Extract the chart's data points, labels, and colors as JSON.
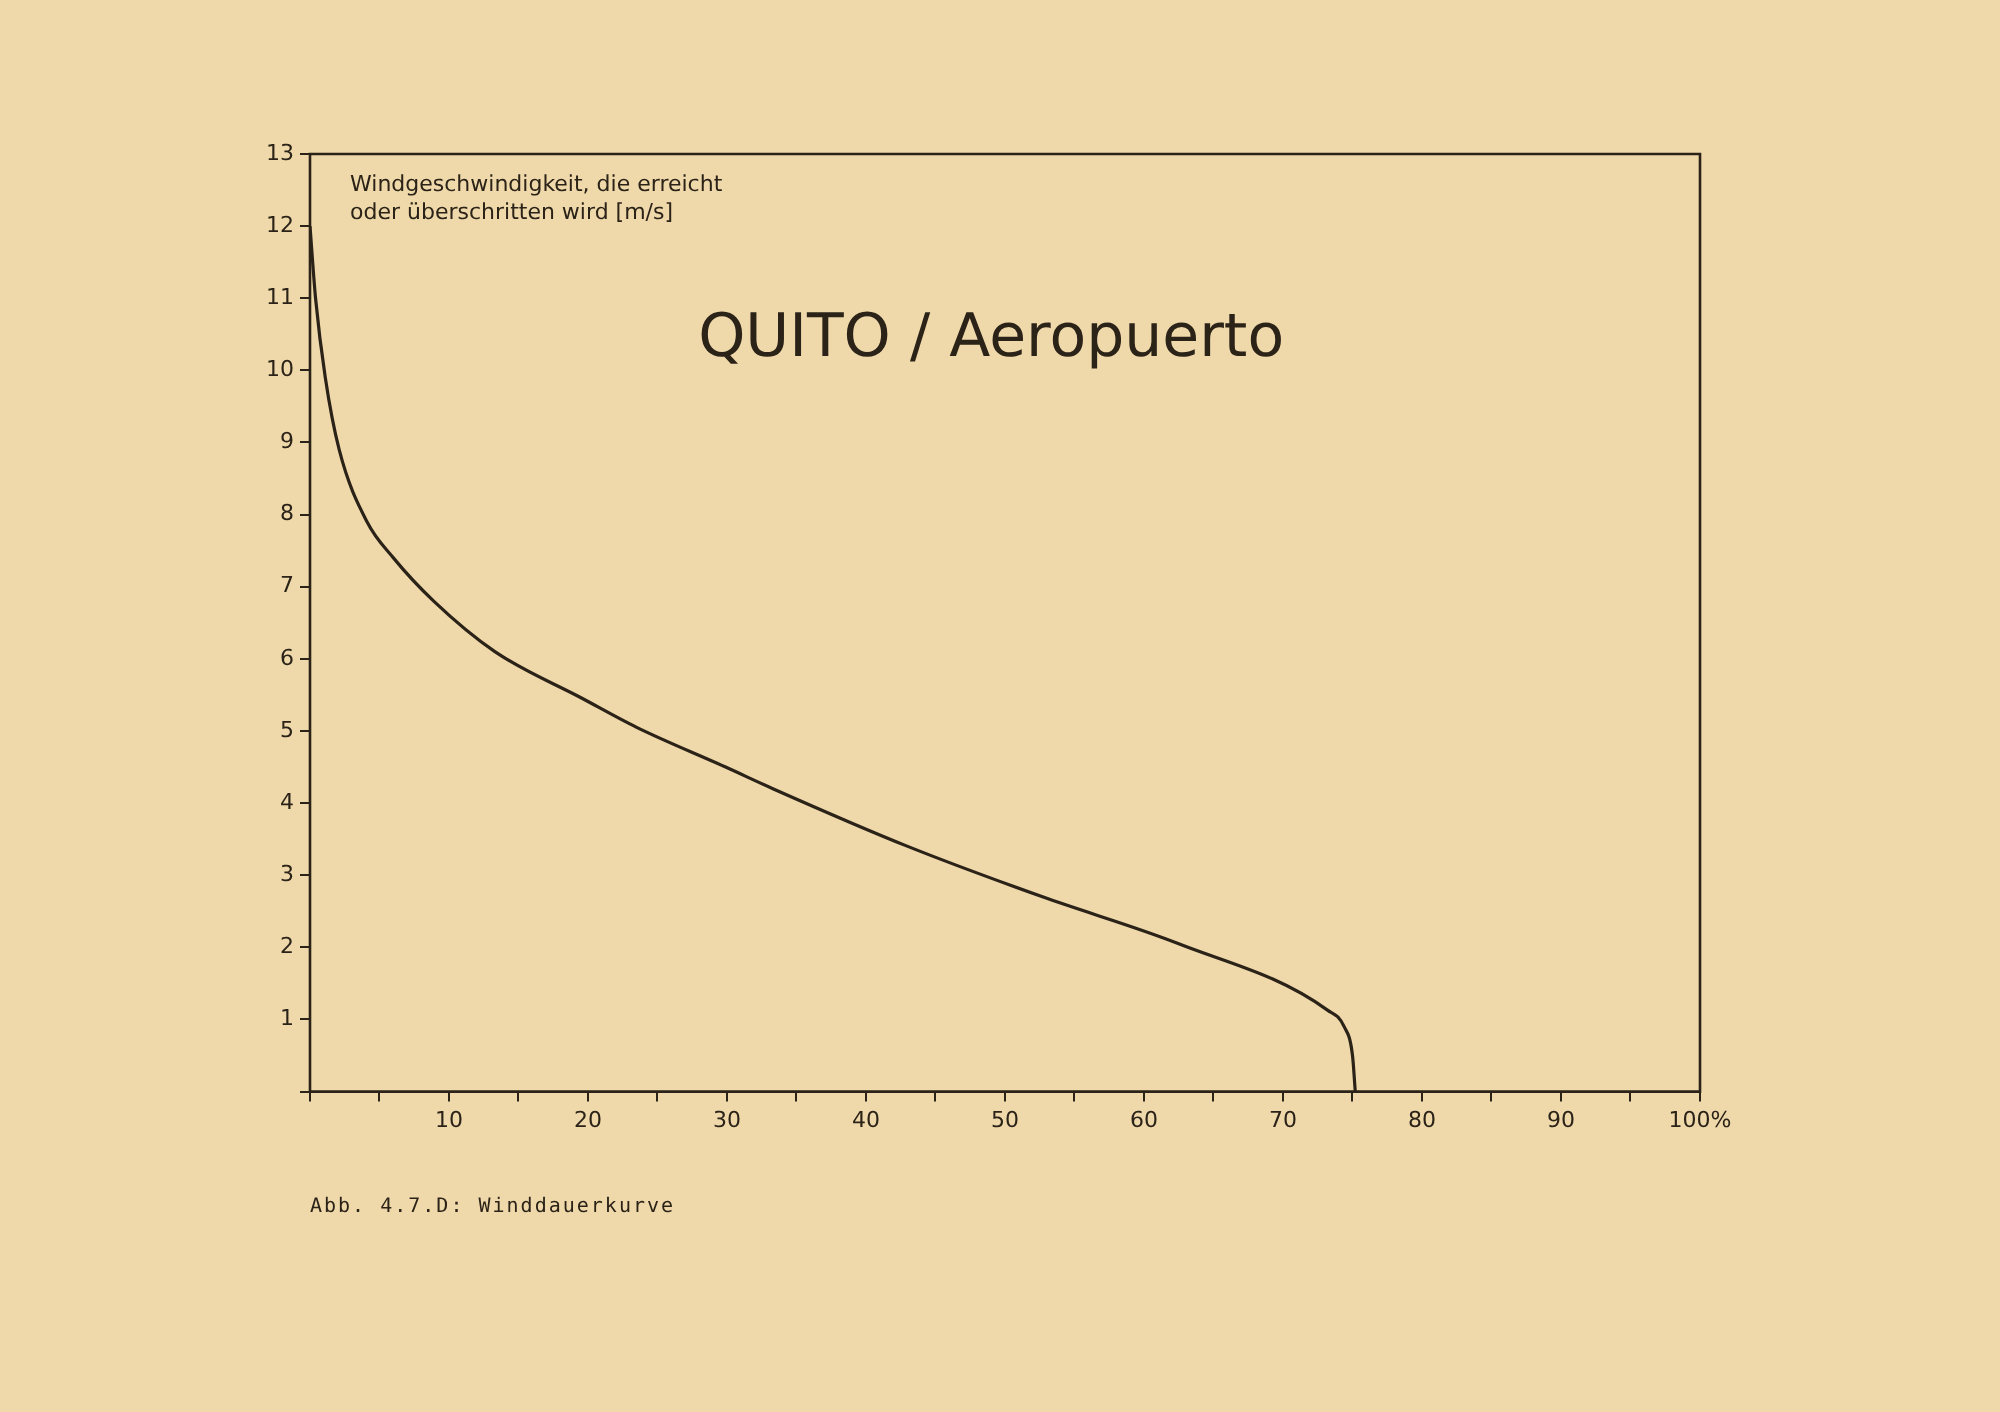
{
  "chart_data": {
    "type": "line",
    "title": "QUITO / Aeropuerto",
    "ylabel": "Windgeschwindigkeit, die erreicht oder überschritten wird [m/s]",
    "annotations": [
      "Abb. 4.7.D: Winddauerkurve"
    ],
    "xlim": [
      0,
      100
    ],
    "ylim": [
      0,
      13
    ],
    "xticks": [
      {
        "value": 0,
        "label": null
      },
      {
        "value": 5,
        "label": null
      },
      10,
      {
        "value": 15,
        "label": null
      },
      20,
      {
        "value": 25,
        "label": null
      },
      30,
      {
        "value": 35,
        "label": null
      },
      40,
      {
        "value": 45,
        "label": null
      },
      50,
      {
        "value": 55,
        "label": null
      },
      60,
      {
        "value": 65,
        "label": null
      },
      70,
      {
        "value": 75,
        "label": null
      },
      80,
      {
        "value": 85,
        "label": null
      },
      90,
      {
        "value": 95,
        "label": null
      },
      {
        "value": 100,
        "label": "100%"
      }
    ],
    "yticks": [
      {
        "value": 0,
        "label": null
      },
      1,
      2,
      3,
      4,
      5,
      6,
      7,
      8,
      9,
      10,
      11,
      12,
      13
    ],
    "marker": "none",
    "line_style": "solid",
    "legend": false,
    "series": [
      {
        "color": "#2b2218",
        "x": [
          0,
          0.4,
          1.1,
          2.1,
          4.1,
          6.0,
          8.9,
          13.3,
          19.6,
          23.5,
          29.9,
          33.3,
          43,
          52.7,
          62.5,
          73.2,
          74.4,
          75.0,
          75.2
        ],
        "values": [
          12,
          11,
          9.9,
          8.9,
          7.9,
          7.4,
          6.8,
          6.1,
          5.45,
          5.05,
          4.5,
          4.2,
          3.4,
          2.7,
          2.05,
          1.13,
          0.9,
          0.5,
          0
        ]
      }
    ]
  }
}
